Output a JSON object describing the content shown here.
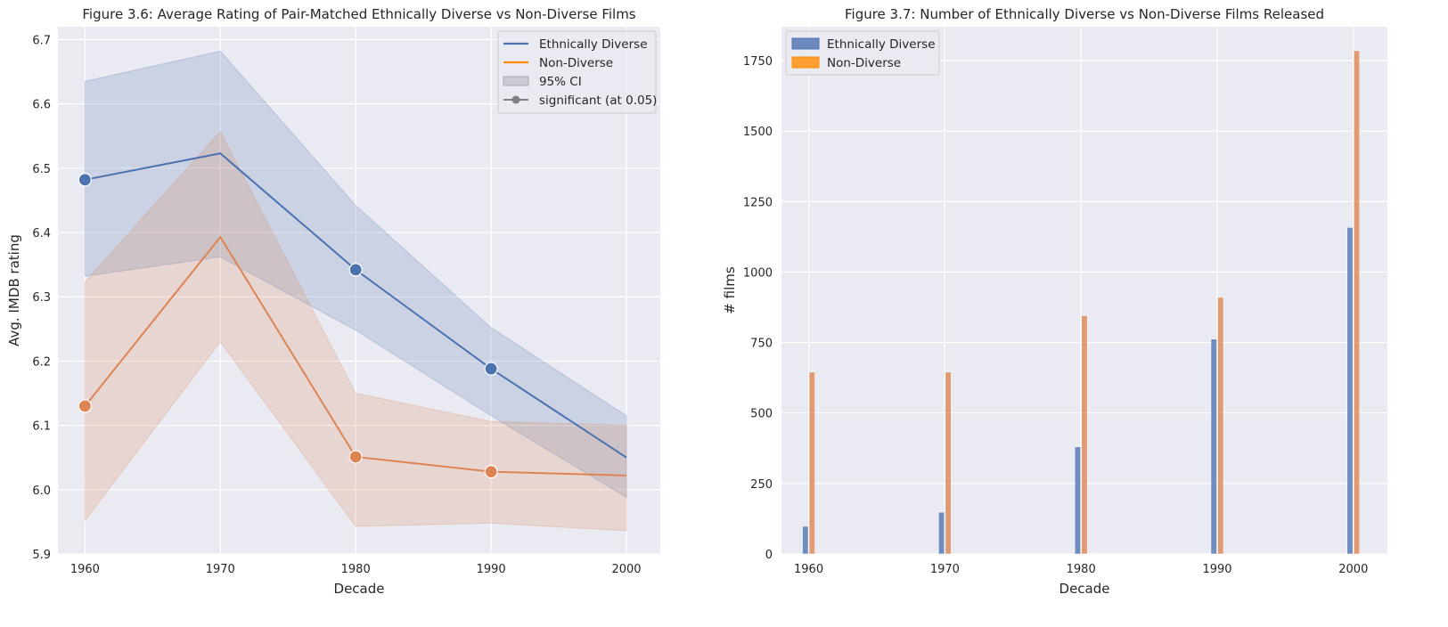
{
  "chart_data": [
    {
      "type": "line",
      "title": "Figure 3.6: Average Rating of Pair-Matched Ethnically Diverse vs Non-Diverse Films",
      "xlabel": "Decade",
      "ylabel": "Avg. IMDB rating",
      "x": [
        1960,
        1970,
        1980,
        1990,
        2000
      ],
      "xticks": [
        "1960",
        "1970",
        "1980",
        "1990",
        "2000"
      ],
      "xlim": [
        1958,
        2002.5
      ],
      "ylim": [
        5.9,
        6.72
      ],
      "yticks": [
        "5.9",
        "6.0",
        "6.1",
        "6.2",
        "6.3",
        "6.4",
        "6.5",
        "6.6",
        "6.7"
      ],
      "grid": true,
      "legend": {
        "position": "top-right",
        "entries": [
          {
            "label": "Ethnically Diverse",
            "kind": "line",
            "color": "#4c72b0"
          },
          {
            "label": "Non-Diverse",
            "kind": "line",
            "color": "#ff8c00"
          },
          {
            "label": "95% CI",
            "kind": "patch",
            "color": "#c0c0c8"
          },
          {
            "label": "significant (at 0.05)",
            "kind": "marker-line",
            "color": "#808080"
          }
        ]
      },
      "series": [
        {
          "name": "Ethnically Diverse",
          "color": "#4c72b0",
          "values": [
            6.482,
            6.523,
            6.342,
            6.188,
            6.05
          ],
          "ci_lower": [
            6.332,
            6.362,
            6.248,
            6.115,
            5.988
          ],
          "ci_upper": [
            6.635,
            6.682,
            6.442,
            6.252,
            6.115
          ],
          "significant": [
            true,
            false,
            true,
            true,
            false
          ]
        },
        {
          "name": "Non-Diverse",
          "color": "#dd8452",
          "values": [
            6.13,
            6.393,
            6.051,
            6.028,
            6.022
          ],
          "ci_lower": [
            5.952,
            6.23,
            5.943,
            5.948,
            5.936
          ],
          "ci_upper": [
            6.323,
            6.557,
            6.15,
            6.106,
            6.1
          ],
          "significant": [
            true,
            false,
            true,
            true,
            false
          ]
        }
      ]
    },
    {
      "type": "bar",
      "title": "Figure 3.7: Number of Ethnically Diverse vs Non-Diverse Films Released",
      "xlabel": "Decade",
      "ylabel": "# films",
      "categories": [
        "1960",
        "1970",
        "1980",
        "1990",
        "2000"
      ],
      "xlim": [
        1958,
        2002.5
      ],
      "ylim": [
        0,
        1870
      ],
      "yticks": [
        "0",
        "250",
        "500",
        "750",
        "1000",
        "1250",
        "1500",
        "1750"
      ],
      "grid": true,
      "legend": {
        "position": "top-left",
        "entries": [
          {
            "label": "Ethnically Diverse",
            "color": "#4c72b0"
          },
          {
            "label": "Non-Diverse",
            "color": "#ff8c00"
          }
        ]
      },
      "series": [
        {
          "name": "Ethnically Diverse",
          "color": "#4c72b0",
          "values": [
            98,
            148,
            380,
            762,
            1158
          ]
        },
        {
          "name": "Non-Diverse",
          "color": "#dd8452",
          "values": [
            645,
            645,
            845,
            910,
            1785
          ]
        }
      ]
    }
  ]
}
